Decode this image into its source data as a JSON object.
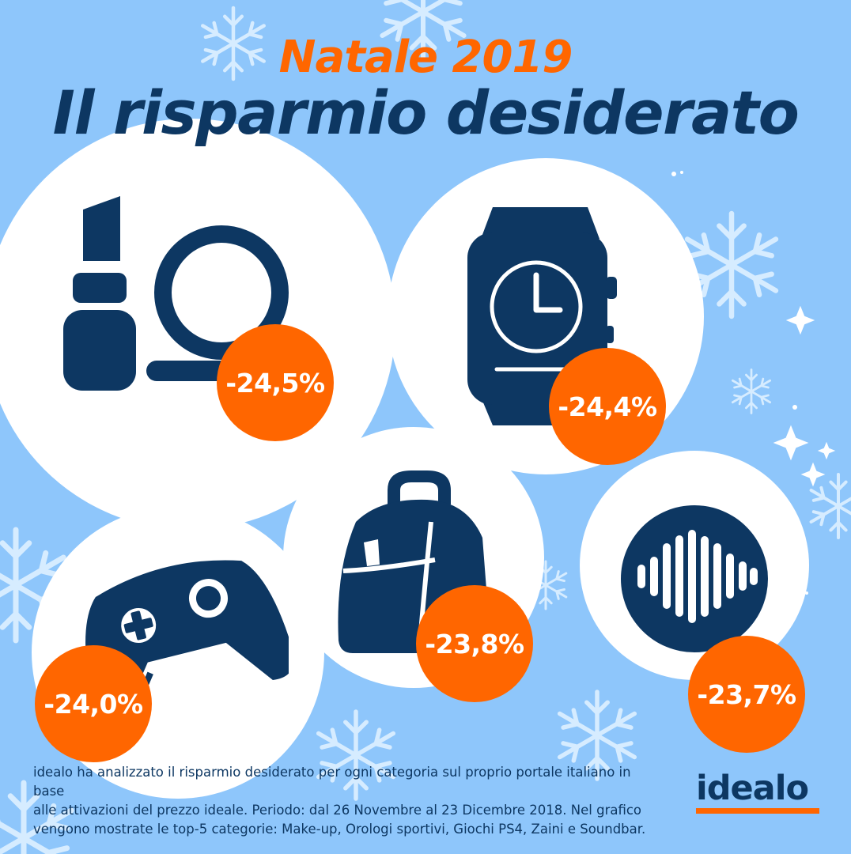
{
  "title": {
    "year": "Natale 2019",
    "main": "Il risparmio desiderato"
  },
  "colors": {
    "background": "#8ec6fb",
    "navy": "#0d3762",
    "orange": "#ff6600",
    "white": "#ffffff",
    "snow": "#d6ecff"
  },
  "categories": [
    {
      "name": "Make-up",
      "icon": "lipstick-compact-icon",
      "percent": "-24,5%",
      "value": -24.5
    },
    {
      "name": "Orologi sportivi",
      "icon": "smartwatch-icon",
      "percent": "-24,4%",
      "value": -24.4
    },
    {
      "name": "Giochi PS4",
      "icon": "gamepad-icon",
      "percent": "-24,0%",
      "value": -24.0
    },
    {
      "name": "Zaini",
      "icon": "backpack-icon",
      "percent": "-23,8%",
      "value": -23.8
    },
    {
      "name": "Soundbar",
      "icon": "soundwave-icon",
      "percent": "-23,7%",
      "value": -23.7
    }
  ],
  "footnote": {
    "line1": "idealo ha analizzato il risparmio desiderato per ogni categoria sul proprio portale italiano in base",
    "line2": "alle attivazioni del prezzo ideale. Periodo: dal 26 Novembre al 23 Dicembre 2018. Nel grafico",
    "line3": "vengono mostrate le top-5 categorie: Make-up, Orologi sportivi, Giochi PS4, Zaini e Soundbar."
  },
  "logo": {
    "text": "idealo"
  }
}
